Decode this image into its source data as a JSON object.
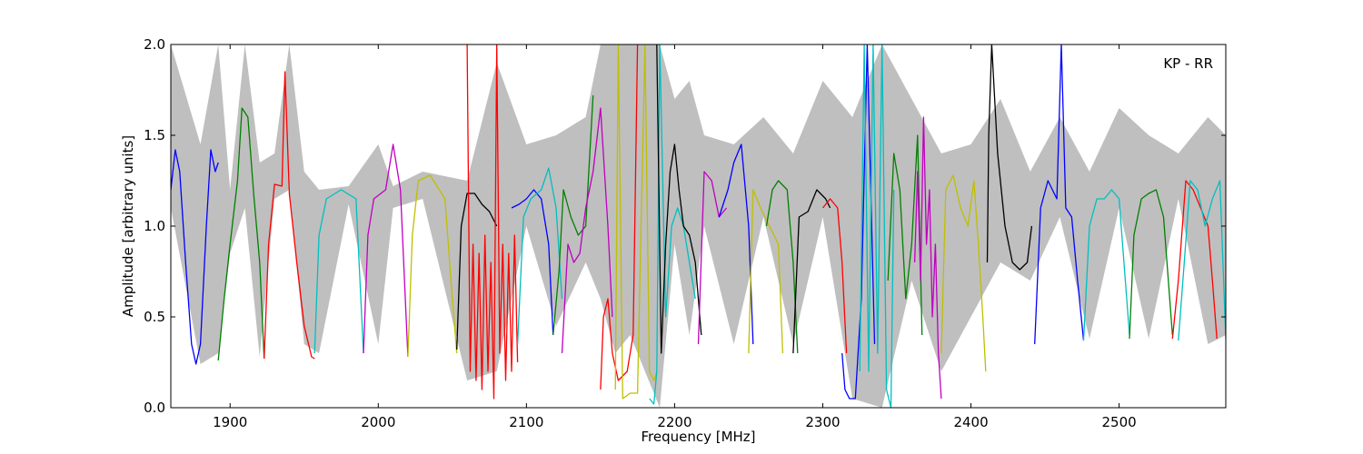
{
  "chart_data": {
    "type": "line",
    "title": "",
    "annotation": "KP - RR",
    "xlabel": "Frequency [MHz]",
    "ylabel": "Amplitude [arbitrary units]",
    "xlim": [
      1860,
      2572
    ],
    "ylim": [
      0,
      2.0
    ],
    "xticks": [
      1900,
      2000,
      2100,
      2200,
      2300,
      2400,
      2500
    ],
    "yticks": [
      0.0,
      0.5,
      1.0,
      1.5,
      2.0
    ],
    "xtick_labels": [
      "1900",
      "2000",
      "2100",
      "2200",
      "2300",
      "2400",
      "2500"
    ],
    "ytick_labels": [
      "0.0",
      "0.5",
      "1.0",
      "1.5",
      "2.0"
    ],
    "grid": false,
    "envelope": {
      "color": "#bfbfbf",
      "x": [
        1860,
        1880,
        1892,
        1900,
        1910,
        1920,
        1930,
        1940,
        1950,
        1960,
        1980,
        2000,
        2010,
        2030,
        2060,
        2080,
        2100,
        2120,
        2140,
        2150,
        2160,
        2170,
        2180,
        2190,
        2200,
        2210,
        2220,
        2240,
        2260,
        2280,
        2300,
        2320,
        2340,
        2360,
        2380,
        2400,
        2420,
        2440,
        2460,
        2480,
        2500,
        2520,
        2540,
        2560,
        2572
      ],
      "upper": [
        2.0,
        1.45,
        2.0,
        1.2,
        2.0,
        1.35,
        1.4,
        2.0,
        1.3,
        1.2,
        1.22,
        1.45,
        1.22,
        1.3,
        1.25,
        1.9,
        1.45,
        1.5,
        1.6,
        2.0,
        2.0,
        2.0,
        2.0,
        2.0,
        1.7,
        1.8,
        1.5,
        1.45,
        1.6,
        1.4,
        1.8,
        1.6,
        2.0,
        1.7,
        1.4,
        1.45,
        1.7,
        1.3,
        1.6,
        1.3,
        1.65,
        1.5,
        1.4,
        1.6,
        1.5
      ],
      "lower": [
        1.1,
        0.24,
        0.3,
        0.85,
        1.1,
        0.28,
        1.15,
        1.2,
        0.35,
        0.3,
        1.12,
        0.35,
        1.1,
        1.15,
        0.15,
        0.2,
        1.0,
        0.45,
        0.8,
        0.6,
        0.3,
        0.4,
        0.2,
        0.0,
        0.9,
        0.4,
        1.0,
        0.35,
        1.05,
        0.35,
        1.05,
        0.05,
        0.0,
        0.7,
        0.2,
        0.5,
        0.8,
        0.7,
        1.05,
        0.38,
        1.1,
        0.38,
        1.15,
        0.35,
        0.4
      ]
    },
    "series": [
      {
        "color": "#0000ff",
        "x": [
          1860,
          1863,
          1866,
          1870,
          1874,
          1877,
          1880,
          1884,
          1887,
          1890,
          1892
        ],
        "y": [
          1.2,
          1.42,
          1.3,
          0.8,
          0.35,
          0.24,
          0.35,
          1.0,
          1.42,
          1.3,
          1.35
        ]
      },
      {
        "color": "#008000",
        "x": [
          1892,
          1896,
          1900,
          1905,
          1908,
          1912,
          1916,
          1920,
          1923
        ],
        "y": [
          0.26,
          0.6,
          0.9,
          1.25,
          1.65,
          1.6,
          1.17,
          0.8,
          0.27
        ]
      },
      {
        "color": "#ff0000",
        "x": [
          1923,
          1926,
          1930,
          1935,
          1937,
          1940,
          1945,
          1950,
          1955,
          1957
        ],
        "y": [
          0.27,
          0.9,
          1.23,
          1.22,
          1.85,
          1.18,
          0.8,
          0.45,
          0.28,
          0.27
        ]
      },
      {
        "color": "#00bfbf",
        "x": [
          1957,
          1960,
          1965,
          1975,
          1985,
          1990
        ],
        "y": [
          0.3,
          0.95,
          1.15,
          1.2,
          1.15,
          0.3
        ]
      },
      {
        "color": "#bf00bf",
        "x": [
          1990,
          1993,
          1997,
          2005,
          2010,
          2015,
          2020
        ],
        "y": [
          0.3,
          0.95,
          1.15,
          1.2,
          1.45,
          1.2,
          0.28
        ]
      },
      {
        "color": "#bfbf00",
        "x": [
          2020,
          2023,
          2027,
          2035,
          2045,
          2050,
          2053
        ],
        "y": [
          0.28,
          0.95,
          1.25,
          1.28,
          1.15,
          0.6,
          0.3
        ]
      },
      {
        "color": "#000000",
        "x": [
          2053,
          2056,
          2060,
          2065,
          2070,
          2075,
          2080
        ],
        "y": [
          0.32,
          1.0,
          1.18,
          1.18,
          1.12,
          1.08,
          1.0
        ]
      },
      {
        "color": "#ff0000",
        "x": [
          2060,
          2062,
          2064,
          2066,
          2068,
          2070,
          2072,
          2074,
          2076,
          2078,
          2080,
          2082,
          2084,
          2086,
          2088,
          2090,
          2092,
          2094
        ],
        "y": [
          2.0,
          0.2,
          0.9,
          0.15,
          0.85,
          0.1,
          0.95,
          0.2,
          0.8,
          0.05,
          2.0,
          0.3,
          0.9,
          0.15,
          0.85,
          0.2,
          0.95,
          0.25
        ]
      },
      {
        "color": "#0000ff",
        "x": [
          2090,
          2095,
          2100,
          2105,
          2110,
          2115,
          2118
        ],
        "y": [
          1.1,
          1.12,
          1.15,
          1.2,
          1.15,
          0.9,
          0.4
        ]
      },
      {
        "color": "#00bfbf",
        "x": [
          2094,
          2098,
          2103,
          2110,
          2115,
          2120,
          2124
        ],
        "y": [
          0.35,
          1.05,
          1.15,
          1.2,
          1.32,
          1.1,
          0.6
        ]
      },
      {
        "color": "#008000",
        "x": [
          2118,
          2122,
          2125,
          2130,
          2135,
          2140,
          2145
        ],
        "y": [
          0.4,
          0.75,
          1.2,
          1.05,
          0.95,
          1.0,
          1.72
        ]
      },
      {
        "color": "#bf00bf",
        "x": [
          2124,
          2128,
          2132,
          2136,
          2140,
          2145,
          2150,
          2155,
          2158
        ],
        "y": [
          0.3,
          0.9,
          0.8,
          0.85,
          1.1,
          1.3,
          1.65,
          1.0,
          0.5
        ]
      },
      {
        "color": "#ff0000",
        "x": [
          2150,
          2152,
          2155,
          2158,
          2162,
          2168,
          2172,
          2175
        ],
        "y": [
          0.1,
          0.5,
          0.6,
          0.3,
          0.15,
          0.2,
          0.4,
          2.0
        ]
      },
      {
        "color": "#bfbf00",
        "x": [
          2160,
          2162,
          2165,
          2170,
          2175,
          2180,
          2183,
          2186,
          2188
        ],
        "y": [
          0.1,
          2.0,
          0.05,
          0.08,
          0.08,
          2.0,
          0.2,
          0.15,
          0.2
        ]
      },
      {
        "color": "#00bfbf",
        "x": [
          2183,
          2186,
          2188,
          2190,
          2194,
          2198,
          2202,
          2206,
          2210,
          2214
        ],
        "y": [
          0.05,
          0.02,
          0.2,
          2.0,
          0.5,
          1.0,
          1.1,
          1.0,
          0.8,
          0.6
        ]
      },
      {
        "color": "#000000",
        "x": [
          2188,
          2191,
          2194,
          2197,
          2200,
          2203,
          2206,
          2210,
          2214,
          2218
        ],
        "y": [
          2.0,
          0.3,
          0.9,
          1.3,
          1.45,
          1.2,
          1.0,
          0.95,
          0.8,
          0.4
        ]
      },
      {
        "color": "#bf00bf",
        "x": [
          2216,
          2220,
          2225,
          2230,
          2235
        ],
        "y": [
          0.35,
          1.3,
          1.25,
          1.05,
          1.1
        ]
      },
      {
        "color": "#0000ff",
        "x": [
          2230,
          2236,
          2240,
          2245,
          2250,
          2253
        ],
        "y": [
          1.05,
          1.2,
          1.35,
          1.45,
          1.0,
          0.35
        ]
      },
      {
        "color": "#bfbf00",
        "x": [
          2250,
          2253,
          2258,
          2264,
          2270,
          2273
        ],
        "y": [
          0.3,
          1.2,
          1.1,
          1.0,
          0.9,
          0.3
        ]
      },
      {
        "color": "#008000",
        "x": [
          2262,
          2266,
          2270,
          2276,
          2280,
          2283
        ],
        "y": [
          1.0,
          1.2,
          1.25,
          1.2,
          0.8,
          0.3
        ]
      },
      {
        "color": "#000000",
        "x": [
          2280,
          2284,
          2290,
          2296,
          2302,
          2305
        ],
        "y": [
          0.3,
          1.05,
          1.08,
          1.2,
          1.15,
          1.1
        ]
      },
      {
        "color": "#ff0000",
        "x": [
          2300,
          2305,
          2310,
          2313,
          2316
        ],
        "y": [
          1.1,
          1.15,
          1.1,
          0.8,
          0.3
        ]
      },
      {
        "color": "#0000ff",
        "x": [
          2313,
          2315,
          2318,
          2322,
          2326,
          2330,
          2333,
          2335
        ],
        "y": [
          0.3,
          0.1,
          0.05,
          0.05,
          0.6,
          2.0,
          1.0,
          0.35
        ]
      },
      {
        "color": "#00bfbf",
        "x": [
          2325,
          2328,
          2331,
          2334,
          2337,
          2340,
          2343,
          2346,
          2348
        ],
        "y": [
          0.2,
          2.0,
          0.2,
          2.0,
          0.3,
          2.0,
          0.1,
          0.0,
          1.2
        ]
      },
      {
        "color": "#008000",
        "x": [
          2344,
          2348,
          2352,
          2356,
          2360,
          2364,
          2367
        ],
        "y": [
          0.7,
          1.4,
          1.2,
          0.6,
          0.9,
          1.5,
          0.4
        ]
      },
      {
        "color": "#bf00bf",
        "x": [
          2362,
          2364,
          2366,
          2368,
          2370,
          2372,
          2374,
          2376,
          2378,
          2380
        ],
        "y": [
          0.8,
          1.3,
          0.7,
          1.6,
          0.9,
          1.2,
          0.5,
          0.9,
          0.3,
          0.05
        ]
      },
      {
        "color": "#bfbf00",
        "x": [
          2380,
          2383,
          2388,
          2393,
          2398,
          2402,
          2405,
          2408,
          2410
        ],
        "y": [
          0.3,
          1.2,
          1.28,
          1.1,
          1.0,
          1.25,
          0.9,
          0.5,
          0.2
        ]
      },
      {
        "color": "#000000",
        "x": [
          2411,
          2412,
          2414,
          2418,
          2423,
          2428,
          2433,
          2438,
          2441
        ],
        "y": [
          0.8,
          1.5,
          2.0,
          1.4,
          1.0,
          0.8,
          0.76,
          0.8,
          1.0
        ]
      },
      {
        "color": "#0000ff",
        "x": [
          2443,
          2447,
          2452,
          2458,
          2461,
          2464,
          2468,
          2472,
          2476
        ],
        "y": [
          0.35,
          1.1,
          1.25,
          1.15,
          2.0,
          1.1,
          1.05,
          0.7,
          0.37
        ]
      },
      {
        "color": "#00bfbf",
        "x": [
          2476,
          2480,
          2485,
          2490,
          2495,
          2500,
          2507
        ],
        "y": [
          0.37,
          1.0,
          1.15,
          1.15,
          1.2,
          1.15,
          0.4
        ]
      },
      {
        "color": "#008000",
        "x": [
          2507,
          2510,
          2515,
          2520,
          2525,
          2530,
          2536
        ],
        "y": [
          0.38,
          0.95,
          1.15,
          1.18,
          1.2,
          1.05,
          0.4
        ]
      },
      {
        "color": "#ff0000",
        "x": [
          2536,
          2540,
          2545,
          2550,
          2555,
          2560,
          2563,
          2566
        ],
        "y": [
          0.38,
          0.7,
          1.25,
          1.2,
          1.1,
          1.0,
          0.7,
          0.38
        ]
      },
      {
        "color": "#00bfbf",
        "x": [
          2540,
          2544,
          2548,
          2553,
          2558,
          2563,
          2568,
          2572
        ],
        "y": [
          0.37,
          0.8,
          1.25,
          1.2,
          1.0,
          1.15,
          1.25,
          0.38
        ]
      }
    ]
  }
}
